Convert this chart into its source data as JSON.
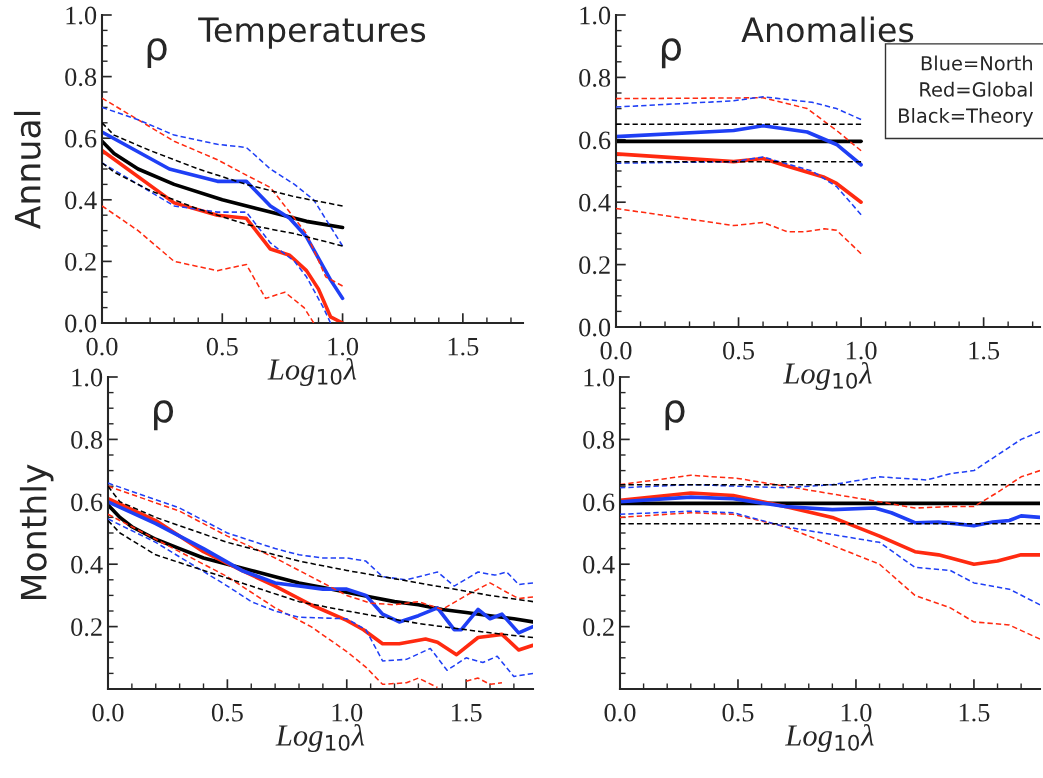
{
  "chart_data": [
    {
      "type": "line",
      "title": "Temperatures",
      "ylabel": "Annual",
      "xlabel": "Log$_{10}$λ",
      "annotations": [
        "ρ"
      ],
      "xlim": [
        0,
        1.75
      ],
      "ylim": [
        0,
        1.0
      ],
      "xticks": [
        {
          "value": 0,
          "label": "0.0"
        },
        {
          "value": 0.1,
          "label": null
        },
        {
          "value": 0.2,
          "label": null
        },
        {
          "value": 0.3,
          "label": null
        },
        {
          "value": 0.4,
          "label": null
        },
        {
          "value": 0.5,
          "label": "0.5"
        },
        {
          "value": 0.6,
          "label": null
        },
        {
          "value": 0.7,
          "label": null
        },
        {
          "value": 0.8,
          "label": null
        },
        {
          "value": 0.9,
          "label": null
        },
        {
          "value": 1.0,
          "label": "1.0"
        },
        {
          "value": 1.1,
          "label": null
        },
        {
          "value": 1.2,
          "label": null
        },
        {
          "value": 1.3,
          "label": null
        },
        {
          "value": 1.4,
          "label": null
        },
        {
          "value": 1.5,
          "label": "1.5"
        },
        {
          "value": 1.6,
          "label": null
        },
        {
          "value": 1.7,
          "label": null
        }
      ],
      "yticks": [
        {
          "value": 0,
          "label": "0.0"
        },
        {
          "value": 0.05,
          "label": null
        },
        {
          "value": 0.1,
          "label": null
        },
        {
          "value": 0.15,
          "label": null
        },
        {
          "value": 0.2,
          "label": "0.2"
        },
        {
          "value": 0.25,
          "label": null
        },
        {
          "value": 0.3,
          "label": null
        },
        {
          "value": 0.35,
          "label": null
        },
        {
          "value": 0.4,
          "label": "0.4"
        },
        {
          "value": 0.45,
          "label": null
        },
        {
          "value": 0.5,
          "label": null
        },
        {
          "value": 0.55,
          "label": null
        },
        {
          "value": 0.6,
          "label": "0.6"
        },
        {
          "value": 0.65,
          "label": null
        },
        {
          "value": 0.7,
          "label": null
        },
        {
          "value": 0.75,
          "label": null
        },
        {
          "value": 0.8,
          "label": "0.8"
        },
        {
          "value": 0.85,
          "label": null
        },
        {
          "value": 0.9,
          "label": null
        },
        {
          "value": 0.95,
          "label": null
        },
        {
          "value": 1.0,
          "label": "1.0"
        }
      ],
      "series": [
        {
          "color": "#ff2a10",
          "line_style": "dashed",
          "x": [
            0,
            0.15,
            0.3,
            0.48,
            0.6,
            0.7,
            0.85,
            0.93,
            1.0
          ],
          "values": [
            0.73,
            0.66,
            0.59,
            0.53,
            0.48,
            0.44,
            0.29,
            0.15,
            0.12
          ]
        },
        {
          "color": "#ff2a10",
          "line_style": "dashed",
          "x": [
            0,
            0.15,
            0.3,
            0.48,
            0.6,
            0.68,
            0.76,
            0.84,
            0.88
          ],
          "values": [
            0.38,
            0.3,
            0.2,
            0.17,
            0.19,
            0.08,
            0.1,
            0.05,
            0.0
          ]
        },
        {
          "color": "#1f3ff5",
          "line_style": "dashed",
          "x": [
            0,
            0.15,
            0.3,
            0.48,
            0.6,
            0.7,
            0.8,
            0.88,
            1.0
          ],
          "values": [
            0.7,
            0.66,
            0.61,
            0.58,
            0.57,
            0.5,
            0.45,
            0.4,
            0.25
          ]
        },
        {
          "color": "#1f3ff5",
          "line_style": "dashed",
          "x": [
            0,
            0.15,
            0.3,
            0.48,
            0.6,
            0.7,
            0.8,
            0.85,
            0.92,
            0.95
          ],
          "values": [
            0.52,
            0.45,
            0.38,
            0.36,
            0.36,
            0.26,
            0.2,
            0.15,
            0.05,
            0.0
          ]
        },
        {
          "color": "#000000",
          "line_style": "dashed",
          "x": [
            0,
            0.05,
            0.2,
            0.4,
            0.6,
            0.8,
            1.0
          ],
          "values": [
            0.65,
            0.61,
            0.56,
            0.5,
            0.45,
            0.41,
            0.38
          ]
        },
        {
          "color": "#000000",
          "line_style": "dashed",
          "x": [
            0,
            0.05,
            0.2,
            0.4,
            0.6,
            0.8,
            1.0
          ],
          "values": [
            0.52,
            0.49,
            0.43,
            0.37,
            0.32,
            0.29,
            0.25
          ]
        },
        {
          "color": "#000000",
          "line_style": "solid",
          "x": [
            0,
            0.05,
            0.15,
            0.3,
            0.5,
            0.7,
            0.85,
            1.0
          ],
          "values": [
            0.59,
            0.55,
            0.5,
            0.45,
            0.4,
            0.36,
            0.33,
            0.31
          ]
        },
        {
          "color": "#ff2a10",
          "line_style": "solid",
          "x": [
            0,
            0.3,
            0.48,
            0.6,
            0.7,
            0.78,
            0.85,
            0.9,
            0.95,
            1.0
          ],
          "values": [
            0.56,
            0.39,
            0.35,
            0.34,
            0.24,
            0.22,
            0.17,
            0.11,
            0.02,
            0.0
          ]
        },
        {
          "color": "#1f3ff5",
          "line_style": "solid",
          "x": [
            0,
            0.28,
            0.48,
            0.6,
            0.7,
            0.78,
            0.85,
            0.9,
            0.95,
            1.0
          ],
          "values": [
            0.62,
            0.5,
            0.46,
            0.46,
            0.38,
            0.34,
            0.28,
            0.21,
            0.14,
            0.08
          ]
        }
      ]
    },
    {
      "type": "line",
      "title": "Anomalies",
      "xlabel": "Log$_{10}$λ",
      "annotations": [
        "ρ",
        "Blue=North\nRed=Global\nBlack=Theory"
      ],
      "xlim": [
        0,
        1.73
      ],
      "ylim": [
        0,
        1.0
      ],
      "xticks": [
        {
          "value": 0,
          "label": "0.0"
        },
        {
          "value": 0.1,
          "label": null
        },
        {
          "value": 0.2,
          "label": null
        },
        {
          "value": 0.3,
          "label": null
        },
        {
          "value": 0.4,
          "label": null
        },
        {
          "value": 0.5,
          "label": "0.5"
        },
        {
          "value": 0.6,
          "label": null
        },
        {
          "value": 0.7,
          "label": null
        },
        {
          "value": 0.8,
          "label": null
        },
        {
          "value": 0.9,
          "label": null
        },
        {
          "value": 1.0,
          "label": "1.0"
        },
        {
          "value": 1.1,
          "label": null
        },
        {
          "value": 1.2,
          "label": null
        },
        {
          "value": 1.3,
          "label": null
        },
        {
          "value": 1.4,
          "label": null
        },
        {
          "value": 1.5,
          "label": "1.5"
        },
        {
          "value": 1.6,
          "label": null
        },
        {
          "value": 1.7,
          "label": null
        }
      ],
      "yticks": [
        {
          "value": 0,
          "label": "0.0"
        },
        {
          "value": 0.05,
          "label": null
        },
        {
          "value": 0.1,
          "label": null
        },
        {
          "value": 0.15,
          "label": null
        },
        {
          "value": 0.2,
          "label": "0.2"
        },
        {
          "value": 0.25,
          "label": null
        },
        {
          "value": 0.3,
          "label": null
        },
        {
          "value": 0.35,
          "label": null
        },
        {
          "value": 0.4,
          "label": "0.4"
        },
        {
          "value": 0.45,
          "label": null
        },
        {
          "value": 0.5,
          "label": null
        },
        {
          "value": 0.55,
          "label": null
        },
        {
          "value": 0.6,
          "label": "0.6"
        },
        {
          "value": 0.65,
          "label": null
        },
        {
          "value": 0.7,
          "label": null
        },
        {
          "value": 0.75,
          "label": null
        },
        {
          "value": 0.8,
          "label": "0.8"
        },
        {
          "value": 0.85,
          "label": null
        },
        {
          "value": 0.9,
          "label": null
        },
        {
          "value": 0.95,
          "label": null
        },
        {
          "value": 1.0,
          "label": "1.0"
        }
      ],
      "series": [
        {
          "color": "#ff2a10",
          "line_style": "dashed",
          "x": [
            0,
            0.48,
            0.6,
            0.78,
            0.9,
            1.0
          ],
          "values": [
            0.732,
            0.734,
            0.735,
            0.7,
            0.63,
            0.565
          ]
        },
        {
          "color": "#ff2a10",
          "line_style": "dashed",
          "x": [
            0,
            0.48,
            0.6,
            0.7,
            0.77,
            0.85,
            0.9,
            1.0
          ],
          "values": [
            0.38,
            0.325,
            0.335,
            0.305,
            0.305,
            0.315,
            0.31,
            0.235
          ]
        },
        {
          "color": "#1f3ff5",
          "line_style": "dashed",
          "x": [
            0,
            0.48,
            0.6,
            0.8,
            0.9,
            1.0
          ],
          "values": [
            0.705,
            0.725,
            0.738,
            0.72,
            0.7,
            0.665
          ]
        },
        {
          "color": "#1f3ff5",
          "line_style": "dashed",
          "x": [
            0,
            0.48,
            0.6,
            0.8,
            0.9,
            1.0
          ],
          "values": [
            0.525,
            0.53,
            0.545,
            0.5,
            0.45,
            0.36
          ]
        },
        {
          "color": "#000000",
          "line_style": "dashed",
          "x": [
            0,
            1.0
          ],
          "values": [
            0.65,
            0.65
          ]
        },
        {
          "color": "#000000",
          "line_style": "dashed",
          "x": [
            0,
            1.0
          ],
          "values": [
            0.53,
            0.53
          ]
        },
        {
          "color": "#000000",
          "line_style": "solid",
          "x": [
            0,
            1.0
          ],
          "values": [
            0.595,
            0.595
          ]
        },
        {
          "color": "#ff2a10",
          "line_style": "solid",
          "x": [
            0,
            0.48,
            0.6,
            0.7,
            0.85,
            0.9,
            1.0
          ],
          "values": [
            0.555,
            0.53,
            0.54,
            0.515,
            0.48,
            0.46,
            0.4
          ]
        },
        {
          "color": "#1f3ff5",
          "line_style": "solid",
          "x": [
            0,
            0.48,
            0.6,
            0.78,
            0.9,
            1.0
          ],
          "values": [
            0.61,
            0.63,
            0.645,
            0.625,
            0.585,
            0.52
          ]
        }
      ]
    },
    {
      "type": "line",
      "ylabel": "Monthly",
      "xlabel": "Log$_{10}$λ",
      "annotations": [
        "ρ"
      ],
      "xlim": [
        0,
        1.78
      ],
      "ylim": [
        0,
        1.0
      ],
      "xticks": [
        {
          "value": 0,
          "label": "0.0"
        },
        {
          "value": 0.1,
          "label": null
        },
        {
          "value": 0.2,
          "label": null
        },
        {
          "value": 0.3,
          "label": null
        },
        {
          "value": 0.4,
          "label": null
        },
        {
          "value": 0.5,
          "label": "0.5"
        },
        {
          "value": 0.6,
          "label": null
        },
        {
          "value": 0.7,
          "label": null
        },
        {
          "value": 0.8,
          "label": null
        },
        {
          "value": 0.9,
          "label": null
        },
        {
          "value": 1.0,
          "label": "1.0"
        },
        {
          "value": 1.1,
          "label": null
        },
        {
          "value": 1.2,
          "label": null
        },
        {
          "value": 1.3,
          "label": null
        },
        {
          "value": 1.4,
          "label": null
        },
        {
          "value": 1.5,
          "label": "1.5"
        },
        {
          "value": 1.6,
          "label": null
        },
        {
          "value": 1.7,
          "label": null
        }
      ],
      "yticks": [
        {
          "value": 0,
          "label": null
        },
        {
          "value": 0.05,
          "label": null
        },
        {
          "value": 0.1,
          "label": null
        },
        {
          "value": 0.15,
          "label": null
        },
        {
          "value": 0.2,
          "label": "0.2"
        },
        {
          "value": 0.25,
          "label": null
        },
        {
          "value": 0.3,
          "label": null
        },
        {
          "value": 0.35,
          "label": null
        },
        {
          "value": 0.4,
          "label": "0.4"
        },
        {
          "value": 0.45,
          "label": null
        },
        {
          "value": 0.5,
          "label": null
        },
        {
          "value": 0.55,
          "label": null
        },
        {
          "value": 0.6,
          "label": "0.6"
        },
        {
          "value": 0.65,
          "label": null
        },
        {
          "value": 0.7,
          "label": null
        },
        {
          "value": 0.75,
          "label": null
        },
        {
          "value": 0.8,
          "label": "0.8"
        },
        {
          "value": 0.85,
          "label": null
        },
        {
          "value": 0.9,
          "label": null
        },
        {
          "value": 0.95,
          "label": null
        },
        {
          "value": 1.0,
          "label": "1.0"
        }
      ],
      "series": [
        {
          "color": "#ff2a10",
          "line_style": "dashed",
          "x": [
            0,
            0.3,
            0.5,
            0.7,
            0.85,
            1.0,
            1.1,
            1.2,
            1.3,
            1.4,
            1.5,
            1.6,
            1.67,
            1.72,
            1.78
          ],
          "values": [
            0.65,
            0.57,
            0.49,
            0.42,
            0.36,
            0.3,
            0.275,
            0.27,
            0.28,
            0.255,
            0.3,
            0.34,
            0.31,
            0.29,
            0.295
          ]
        },
        {
          "color": "#ff2a10",
          "line_style": "dashed",
          "x": [
            0,
            0.2,
            0.5,
            0.7,
            0.85,
            1.0,
            1.08,
            1.15,
            1.25,
            1.3,
            1.38,
            1.44,
            1.5,
            1.55,
            1.6,
            1.65
          ],
          "values": [
            0.56,
            0.48,
            0.36,
            0.26,
            0.2,
            0.12,
            0.07,
            0.015,
            0.02,
            0.035,
            0.005,
            null,
            0.025,
            0.035,
            0.015,
            0.02
          ]
        },
        {
          "color": "#1f3ff5",
          "line_style": "dashed",
          "x": [
            0,
            0.3,
            0.5,
            0.7,
            0.8,
            0.9,
            1.0,
            1.08,
            1.15,
            1.25,
            1.38,
            1.45,
            1.55,
            1.62,
            1.67,
            1.72,
            1.78
          ],
          "values": [
            0.66,
            0.58,
            0.5,
            0.45,
            0.43,
            0.42,
            0.42,
            0.41,
            0.36,
            0.35,
            0.375,
            0.33,
            0.375,
            0.365,
            0.375,
            0.335,
            0.34
          ]
        },
        {
          "color": "#1f3ff5",
          "line_style": "dashed",
          "x": [
            0,
            0.2,
            0.5,
            0.6,
            0.7,
            0.8,
            1.0,
            1.08,
            1.15,
            1.25,
            1.35,
            1.42,
            1.5,
            1.57,
            1.63,
            1.7,
            1.78
          ],
          "values": [
            0.545,
            0.47,
            0.33,
            0.28,
            0.25,
            0.23,
            0.225,
            0.19,
            0.09,
            0.095,
            0.13,
            0.06,
            0.1,
            0.085,
            0.105,
            0.04,
            0.05
          ]
        },
        {
          "color": "#000000",
          "line_style": "dashed",
          "x": [
            0,
            0.05,
            0.2,
            0.5,
            0.8,
            1.0,
            1.3,
            1.6,
            1.78
          ],
          "values": [
            0.65,
            0.6,
            0.55,
            0.47,
            0.41,
            0.38,
            0.34,
            0.3,
            0.28
          ]
        },
        {
          "color": "#000000",
          "line_style": "dashed",
          "x": [
            0,
            0.05,
            0.2,
            0.4,
            0.6,
            0.8,
            1.0,
            1.3,
            1.6,
            1.78
          ],
          "values": [
            0.54,
            0.5,
            0.43,
            0.38,
            0.33,
            0.28,
            0.25,
            0.21,
            0.18,
            0.165
          ]
        },
        {
          "color": "#000000",
          "line_style": "solid",
          "x": [
            0,
            0.05,
            0.1,
            0.2,
            0.3,
            0.4,
            0.5,
            0.6,
            0.7,
            0.8,
            0.9,
            1.0,
            1.1,
            1.2,
            1.3,
            1.4,
            1.5,
            1.6,
            1.7,
            1.78
          ],
          "values": [
            0.59,
            0.55,
            0.52,
            0.48,
            0.45,
            0.42,
            0.4,
            0.38,
            0.36,
            0.34,
            0.325,
            0.31,
            0.295,
            0.28,
            0.27,
            0.255,
            0.245,
            0.235,
            0.225,
            0.215
          ]
        },
        {
          "color": "#ff2a10",
          "line_style": "solid",
          "x": [
            0,
            0.2,
            0.4,
            0.56,
            0.7,
            0.85,
            1.0,
            1.07,
            1.15,
            1.22,
            1.33,
            1.38,
            1.46,
            1.55,
            1.6,
            1.65,
            1.72,
            1.78
          ],
          "values": [
            0.61,
            0.54,
            0.44,
            0.38,
            0.33,
            0.27,
            0.22,
            0.19,
            0.145,
            0.145,
            0.16,
            0.15,
            0.11,
            0.165,
            0.17,
            0.175,
            0.125,
            0.14
          ]
        },
        {
          "color": "#1f3ff5",
          "line_style": "solid",
          "x": [
            0,
            0.2,
            0.4,
            0.56,
            0.7,
            0.8,
            0.9,
            1.0,
            1.08,
            1.15,
            1.22,
            1.3,
            1.38,
            1.45,
            1.48,
            1.55,
            1.6,
            1.65,
            1.72,
            1.78
          ],
          "values": [
            0.6,
            0.53,
            0.45,
            0.38,
            0.34,
            0.33,
            0.32,
            0.32,
            0.3,
            0.24,
            0.215,
            0.235,
            0.26,
            0.19,
            0.19,
            0.255,
            0.225,
            0.24,
            0.18,
            0.2
          ]
        }
      ]
    },
    {
      "type": "line",
      "xlabel": "Log$_{10}$λ",
      "annotations": [
        "ρ"
      ],
      "xlim": [
        0,
        1.78
      ],
      "ylim": [
        0,
        1.0
      ],
      "xticks": [
        {
          "value": 0,
          "label": "0.0"
        },
        {
          "value": 0.1,
          "label": null
        },
        {
          "value": 0.2,
          "label": null
        },
        {
          "value": 0.3,
          "label": null
        },
        {
          "value": 0.4,
          "label": null
        },
        {
          "value": 0.5,
          "label": "0.5"
        },
        {
          "value": 0.6,
          "label": null
        },
        {
          "value": 0.7,
          "label": null
        },
        {
          "value": 0.8,
          "label": null
        },
        {
          "value": 0.9,
          "label": null
        },
        {
          "value": 1.0,
          "label": "1.0"
        },
        {
          "value": 1.1,
          "label": null
        },
        {
          "value": 1.2,
          "label": null
        },
        {
          "value": 1.3,
          "label": null
        },
        {
          "value": 1.4,
          "label": null
        },
        {
          "value": 1.5,
          "label": "1.5"
        },
        {
          "value": 1.6,
          "label": null
        },
        {
          "value": 1.7,
          "label": null
        }
      ],
      "yticks": [
        {
          "value": 0,
          "label": null
        },
        {
          "value": 0.05,
          "label": null
        },
        {
          "value": 0.1,
          "label": null
        },
        {
          "value": 0.15,
          "label": null
        },
        {
          "value": 0.2,
          "label": "0.2"
        },
        {
          "value": 0.25,
          "label": null
        },
        {
          "value": 0.3,
          "label": null
        },
        {
          "value": 0.35,
          "label": null
        },
        {
          "value": 0.4,
          "label": "0.4"
        },
        {
          "value": 0.45,
          "label": null
        },
        {
          "value": 0.5,
          "label": null
        },
        {
          "value": 0.55,
          "label": null
        },
        {
          "value": 0.6,
          "label": "0.6"
        },
        {
          "value": 0.65,
          "label": null
        },
        {
          "value": 0.7,
          "label": null
        },
        {
          "value": 0.75,
          "label": null
        },
        {
          "value": 0.8,
          "label": "0.8"
        },
        {
          "value": 0.85,
          "label": null
        },
        {
          "value": 0.9,
          "label": null
        },
        {
          "value": 0.95,
          "label": null
        },
        {
          "value": 1.0,
          "label": "1.0"
        }
      ],
      "series": [
        {
          "color": "#ff2a10",
          "line_style": "dashed",
          "x": [
            0,
            0.3,
            0.5,
            0.7,
            0.9,
            1.1,
            1.25,
            1.4,
            1.5,
            1.6,
            1.7,
            1.78
          ],
          "values": [
            0.655,
            0.685,
            0.675,
            0.65,
            0.625,
            0.6,
            0.58,
            0.585,
            0.585,
            0.63,
            0.68,
            0.7
          ]
        },
        {
          "color": "#ff2a10",
          "line_style": "dashed",
          "x": [
            0,
            0.3,
            0.48,
            0.7,
            0.9,
            1.1,
            1.25,
            1.4,
            1.5,
            1.65,
            1.78
          ],
          "values": [
            0.55,
            0.565,
            0.56,
            0.52,
            0.46,
            0.4,
            0.3,
            0.26,
            0.215,
            0.205,
            0.16
          ]
        },
        {
          "color": "#1f3ff5",
          "line_style": "dashed",
          "x": [
            0,
            0.3,
            0.5,
            0.7,
            0.9,
            1.1,
            1.3,
            1.4,
            1.5,
            1.6,
            1.7,
            1.78
          ],
          "values": [
            0.645,
            0.655,
            0.65,
            0.645,
            0.655,
            0.68,
            0.67,
            0.69,
            0.7,
            0.75,
            0.8,
            0.825
          ]
        },
        {
          "color": "#1f3ff5",
          "line_style": "dashed",
          "x": [
            0,
            0.3,
            0.48,
            0.7,
            0.9,
            1.1,
            1.25,
            1.4,
            1.5,
            1.65,
            1.78
          ],
          "values": [
            0.56,
            0.57,
            0.565,
            0.52,
            0.495,
            0.47,
            0.39,
            0.38,
            0.34,
            0.32,
            0.27
          ]
        },
        {
          "color": "#000000",
          "line_style": "dashed",
          "x": [
            0,
            1.78
          ],
          "values": [
            0.655,
            0.655
          ]
        },
        {
          "color": "#000000",
          "line_style": "dashed",
          "x": [
            0,
            1.78
          ],
          "values": [
            0.53,
            0.53
          ]
        },
        {
          "color": "#000000",
          "line_style": "solid",
          "x": [
            0,
            1.78
          ],
          "values": [
            0.595,
            0.595
          ]
        },
        {
          "color": "#ff2a10",
          "line_style": "solid",
          "x": [
            0,
            0.3,
            0.48,
            0.7,
            0.9,
            1.1,
            1.25,
            1.35,
            1.5,
            1.6,
            1.7,
            1.78
          ],
          "values": [
            0.605,
            0.628,
            0.62,
            0.585,
            0.55,
            0.49,
            0.44,
            0.43,
            0.4,
            0.41,
            0.43,
            0.43
          ]
        },
        {
          "color": "#1f3ff5",
          "line_style": "solid",
          "x": [
            0,
            0.3,
            0.48,
            0.7,
            0.9,
            1.08,
            1.15,
            1.25,
            1.35,
            1.42,
            1.5,
            1.58,
            1.65,
            1.7,
            1.78
          ],
          "values": [
            0.6,
            0.615,
            0.61,
            0.585,
            0.575,
            0.58,
            0.565,
            0.533,
            0.535,
            0.53,
            0.523,
            0.535,
            0.54,
            0.555,
            0.55
          ]
        }
      ]
    }
  ]
}
